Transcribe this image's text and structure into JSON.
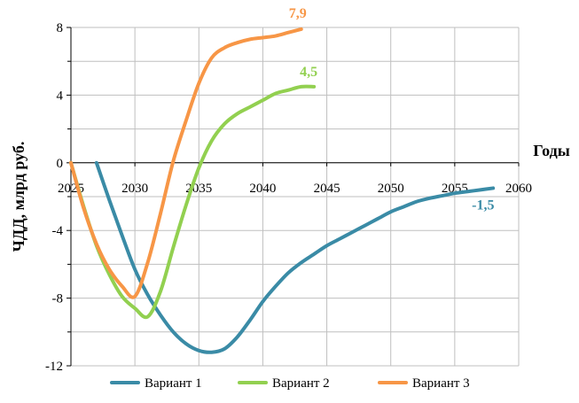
{
  "chart_data": {
    "type": "line",
    "title": "",
    "xlabel": "Годы",
    "ylabel": "ЧДД, млрд руб.",
    "xlim": [
      2025,
      2060
    ],
    "ylim": [
      -12,
      8
    ],
    "x_ticks": [
      "2025",
      "2030",
      "2035",
      "2040",
      "2045",
      "2050",
      "2055",
      "2060"
    ],
    "y_ticks": [
      "8",
      "4",
      "0",
      "-4",
      "-8",
      "-12"
    ],
    "grid": true,
    "legend_position": "bottom",
    "series": [
      {
        "name": "Вариант 1",
        "color": "#3a8ba6",
        "end_label": "-1,5",
        "points": [
          [
            2027,
            0.0
          ],
          [
            2028,
            -2.2
          ],
          [
            2029,
            -4.3
          ],
          [
            2030,
            -6.3
          ],
          [
            2031,
            -7.8
          ],
          [
            2032,
            -9.0
          ],
          [
            2033,
            -10.0
          ],
          [
            2034,
            -10.7
          ],
          [
            2035,
            -11.1
          ],
          [
            2036,
            -11.2
          ],
          [
            2037,
            -11.0
          ],
          [
            2038,
            -10.3
          ],
          [
            2039,
            -9.3
          ],
          [
            2040,
            -8.2
          ],
          [
            2041,
            -7.3
          ],
          [
            2042,
            -6.5
          ],
          [
            2043,
            -5.9
          ],
          [
            2044,
            -5.4
          ],
          [
            2045,
            -4.9
          ],
          [
            2046,
            -4.5
          ],
          [
            2047,
            -4.1
          ],
          [
            2048,
            -3.7
          ],
          [
            2049,
            -3.3
          ],
          [
            2050,
            -2.9
          ],
          [
            2051,
            -2.6
          ],
          [
            2052,
            -2.3
          ],
          [
            2053,
            -2.1
          ],
          [
            2054,
            -1.95
          ],
          [
            2055,
            -1.8
          ],
          [
            2056,
            -1.7
          ],
          [
            2057,
            -1.6
          ],
          [
            2058,
            -1.5
          ]
        ]
      },
      {
        "name": "Вариант 2",
        "color": "#92d050",
        "end_label": "4,5",
        "points": [
          [
            2025,
            0.0
          ],
          [
            2026,
            -2.6
          ],
          [
            2027,
            -4.9
          ],
          [
            2028,
            -6.6
          ],
          [
            2029,
            -7.9
          ],
          [
            2030,
            -8.6
          ],
          [
            2031,
            -9.1
          ],
          [
            2032,
            -7.6
          ],
          [
            2033,
            -5.0
          ],
          [
            2034,
            -2.5
          ],
          [
            2035,
            -0.3
          ],
          [
            2036,
            1.3
          ],
          [
            2037,
            2.3
          ],
          [
            2038,
            2.9
          ],
          [
            2039,
            3.3
          ],
          [
            2040,
            3.7
          ],
          [
            2041,
            4.1
          ],
          [
            2042,
            4.3
          ],
          [
            2043,
            4.5
          ],
          [
            2044,
            4.5
          ]
        ]
      },
      {
        "name": "Вариант 3",
        "color": "#f79646",
        "end_label": "7,9",
        "points": [
          [
            2025,
            0.0
          ],
          [
            2026,
            -2.7
          ],
          [
            2027,
            -4.8
          ],
          [
            2028,
            -6.3
          ],
          [
            2029,
            -7.3
          ],
          [
            2030,
            -7.9
          ],
          [
            2031,
            -5.9
          ],
          [
            2032,
            -3.0
          ],
          [
            2033,
            0.1
          ],
          [
            2034,
            2.5
          ],
          [
            2035,
            4.7
          ],
          [
            2036,
            6.2
          ],
          [
            2037,
            6.8
          ],
          [
            2038,
            7.1
          ],
          [
            2039,
            7.3
          ],
          [
            2040,
            7.4
          ],
          [
            2041,
            7.5
          ],
          [
            2042,
            7.7
          ],
          [
            2043,
            7.9
          ]
        ]
      }
    ]
  }
}
